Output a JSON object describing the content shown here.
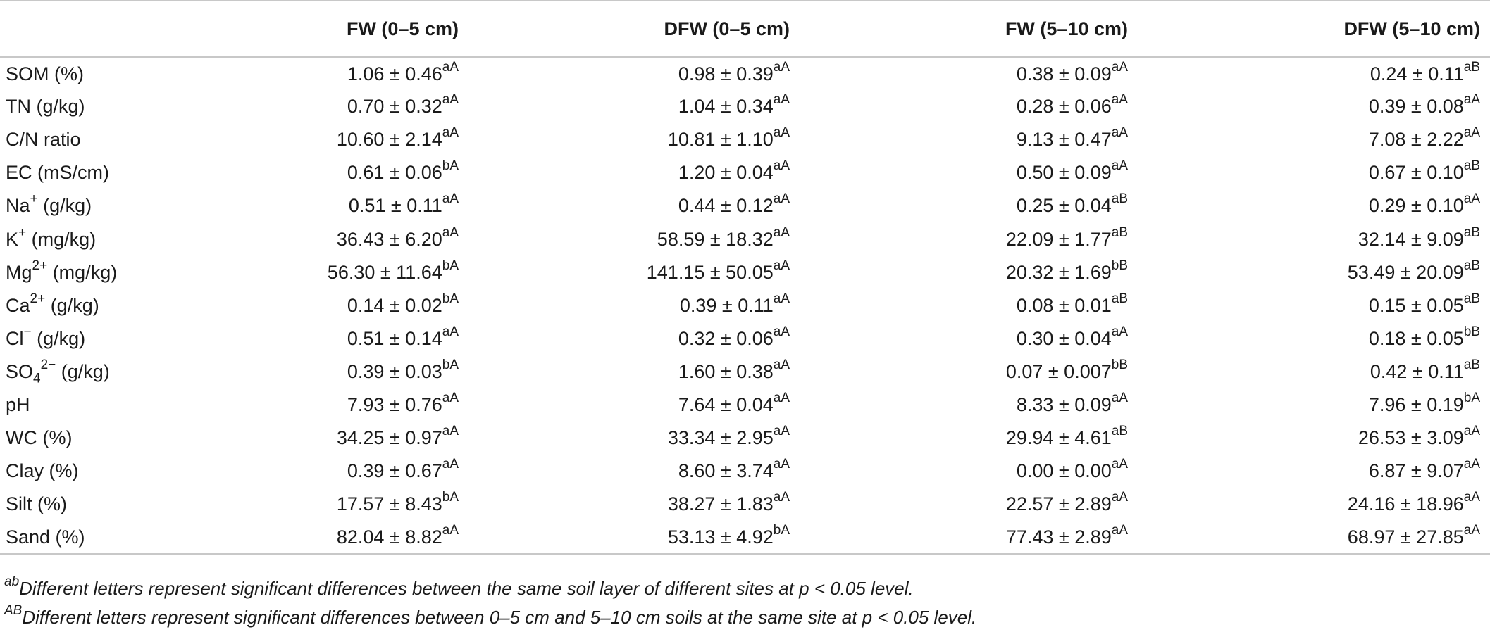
{
  "table": {
    "headers": [
      "",
      "FW (0–5 cm)",
      "DFW (0–5 cm)",
      "FW (5–10 cm)",
      "DFW (5–10 cm)"
    ],
    "rows": [
      {
        "label": "SOM (%)",
        "label_sup": "",
        "label_sub": "",
        "label_suffix": "",
        "cells": [
          {
            "value": "1.06 ± 0.46",
            "sup": "aA"
          },
          {
            "value": "0.98 ± 0.39",
            "sup": "aA"
          },
          {
            "value": "0.38 ± 0.09",
            "sup": "aA"
          },
          {
            "value": "0.24 ± 0.11",
            "sup": "aB"
          }
        ]
      },
      {
        "label": "TN (g/kg)",
        "label_sup": "",
        "label_sub": "",
        "label_suffix": "",
        "cells": [
          {
            "value": "0.70 ± 0.32",
            "sup": "aA"
          },
          {
            "value": "1.04 ± 0.34",
            "sup": "aA"
          },
          {
            "value": "0.28 ± 0.06",
            "sup": "aA"
          },
          {
            "value": "0.39 ± 0.08",
            "sup": "aA"
          }
        ]
      },
      {
        "label": "C/N ratio",
        "label_sup": "",
        "label_sub": "",
        "label_suffix": "",
        "cells": [
          {
            "value": "10.60 ± 2.14",
            "sup": "aA"
          },
          {
            "value": "10.81 ± 1.10",
            "sup": "aA"
          },
          {
            "value": "9.13 ± 0.47",
            "sup": "aA"
          },
          {
            "value": "7.08 ± 2.22",
            "sup": "aA"
          }
        ]
      },
      {
        "label": "EC (mS/cm)",
        "label_sup": "",
        "label_sub": "",
        "label_suffix": "",
        "cells": [
          {
            "value": "0.61 ± 0.06",
            "sup": "bA"
          },
          {
            "value": "1.20 ± 0.04",
            "sup": "aA"
          },
          {
            "value": "0.50 ± 0.09",
            "sup": "aA"
          },
          {
            "value": "0.67 ± 0.10",
            "sup": "aB"
          }
        ]
      },
      {
        "label": "Na",
        "label_sup": "+",
        "label_sub": "",
        "label_suffix": " (g/kg)",
        "cells": [
          {
            "value": "0.51 ± 0.11",
            "sup": "aA"
          },
          {
            "value": "0.44 ± 0.12",
            "sup": "aA"
          },
          {
            "value": "0.25 ± 0.04",
            "sup": "aB"
          },
          {
            "value": "0.29 ± 0.10",
            "sup": "aA"
          }
        ]
      },
      {
        "label": "K",
        "label_sup": "+",
        "label_sub": "",
        "label_suffix": " (mg/kg)",
        "cells": [
          {
            "value": "36.43 ± 6.20",
            "sup": "aA"
          },
          {
            "value": "58.59 ± 18.32",
            "sup": "aA"
          },
          {
            "value": "22.09 ± 1.77",
            "sup": "aB"
          },
          {
            "value": "32.14 ± 9.09",
            "sup": "aB"
          }
        ]
      },
      {
        "label": "Mg",
        "label_sup": "2+",
        "label_sub": "",
        "label_suffix": " (mg/kg)",
        "cells": [
          {
            "value": "56.30 ± 11.64",
            "sup": "bA"
          },
          {
            "value": "141.15 ± 50.05",
            "sup": "aA"
          },
          {
            "value": "20.32 ± 1.69",
            "sup": "bB"
          },
          {
            "value": "53.49 ± 20.09",
            "sup": "aB"
          }
        ]
      },
      {
        "label": "Ca",
        "label_sup": "2+",
        "label_sub": "",
        "label_suffix": " (g/kg)",
        "cells": [
          {
            "value": "0.14 ± 0.02",
            "sup": "bA"
          },
          {
            "value": "0.39 ± 0.11",
            "sup": "aA"
          },
          {
            "value": "0.08 ± 0.01",
            "sup": "aB"
          },
          {
            "value": "0.15 ± 0.05",
            "sup": "aB"
          }
        ]
      },
      {
        "label": "Cl",
        "label_sup": "−",
        "label_sub": "",
        "label_suffix": " (g/kg)",
        "cells": [
          {
            "value": "0.51 ± 0.14",
            "sup": "aA"
          },
          {
            "value": "0.32 ± 0.06",
            "sup": "aA"
          },
          {
            "value": "0.30 ± 0.04",
            "sup": "aA"
          },
          {
            "value": "0.18 ± 0.05",
            "sup": "bB"
          }
        ]
      },
      {
        "label": "SO",
        "label_sub": "4",
        "label_sup": "2−",
        "label_suffix": " (g/kg)",
        "cells": [
          {
            "value": "0.39 ± 0.03",
            "sup": "bA"
          },
          {
            "value": "1.60 ± 0.38",
            "sup": "aA"
          },
          {
            "value": "0.07 ± 0.007",
            "sup": "bB"
          },
          {
            "value": "0.42 ± 0.11",
            "sup": "aB"
          }
        ]
      },
      {
        "label": "pH",
        "label_sup": "",
        "label_sub": "",
        "label_suffix": "",
        "cells": [
          {
            "value": "7.93 ± 0.76",
            "sup": "aA"
          },
          {
            "value": "7.64 ± 0.04",
            "sup": "aA"
          },
          {
            "value": "8.33 ± 0.09",
            "sup": "aA"
          },
          {
            "value": "7.96 ± 0.19",
            "sup": "bA"
          }
        ]
      },
      {
        "label": "WC (%)",
        "label_sup": "",
        "label_sub": "",
        "label_suffix": "",
        "cells": [
          {
            "value": "34.25 ± 0.97",
            "sup": "aA"
          },
          {
            "value": "33.34 ± 2.95",
            "sup": "aA"
          },
          {
            "value": "29.94 ± 4.61",
            "sup": "aB"
          },
          {
            "value": "26.53 ± 3.09",
            "sup": "aA"
          }
        ]
      },
      {
        "label": "Clay (%)",
        "label_sup": "",
        "label_sub": "",
        "label_suffix": "",
        "cells": [
          {
            "value": "0.39 ± 0.67",
            "sup": "aA"
          },
          {
            "value": "8.60 ± 3.74",
            "sup": "aA"
          },
          {
            "value": "0.00 ± 0.00",
            "sup": "aA"
          },
          {
            "value": "6.87 ± 9.07",
            "sup": "aA"
          }
        ]
      },
      {
        "label": "Silt (%)",
        "label_sup": "",
        "label_sub": "",
        "label_suffix": "",
        "cells": [
          {
            "value": "17.57 ± 8.43",
            "sup": "bA"
          },
          {
            "value": "38.27 ± 1.83",
            "sup": "aA"
          },
          {
            "value": "22.57 ± 2.89",
            "sup": "aA"
          },
          {
            "value": "24.16 ± 18.96",
            "sup": "aA"
          }
        ]
      },
      {
        "label": "Sand (%)",
        "label_sup": "",
        "label_sub": "",
        "label_suffix": "",
        "cells": [
          {
            "value": "82.04 ± 8.82",
            "sup": "aA"
          },
          {
            "value": "53.13 ± 4.92",
            "sup": "bA"
          },
          {
            "value": "77.43 ± 2.89",
            "sup": "aA"
          },
          {
            "value": "68.97 ± 27.85",
            "sup": "aA"
          }
        ]
      }
    ]
  },
  "footnotes": [
    {
      "marker": "ab",
      "text": "Different letters represent significant differences between the same soil layer of different sites at p < 0.05 level."
    },
    {
      "marker": "AB",
      "text": "Different letters represent significant differences between 0–5 cm and 5–10 cm soils at the same site at p < 0.05 level."
    }
  ]
}
